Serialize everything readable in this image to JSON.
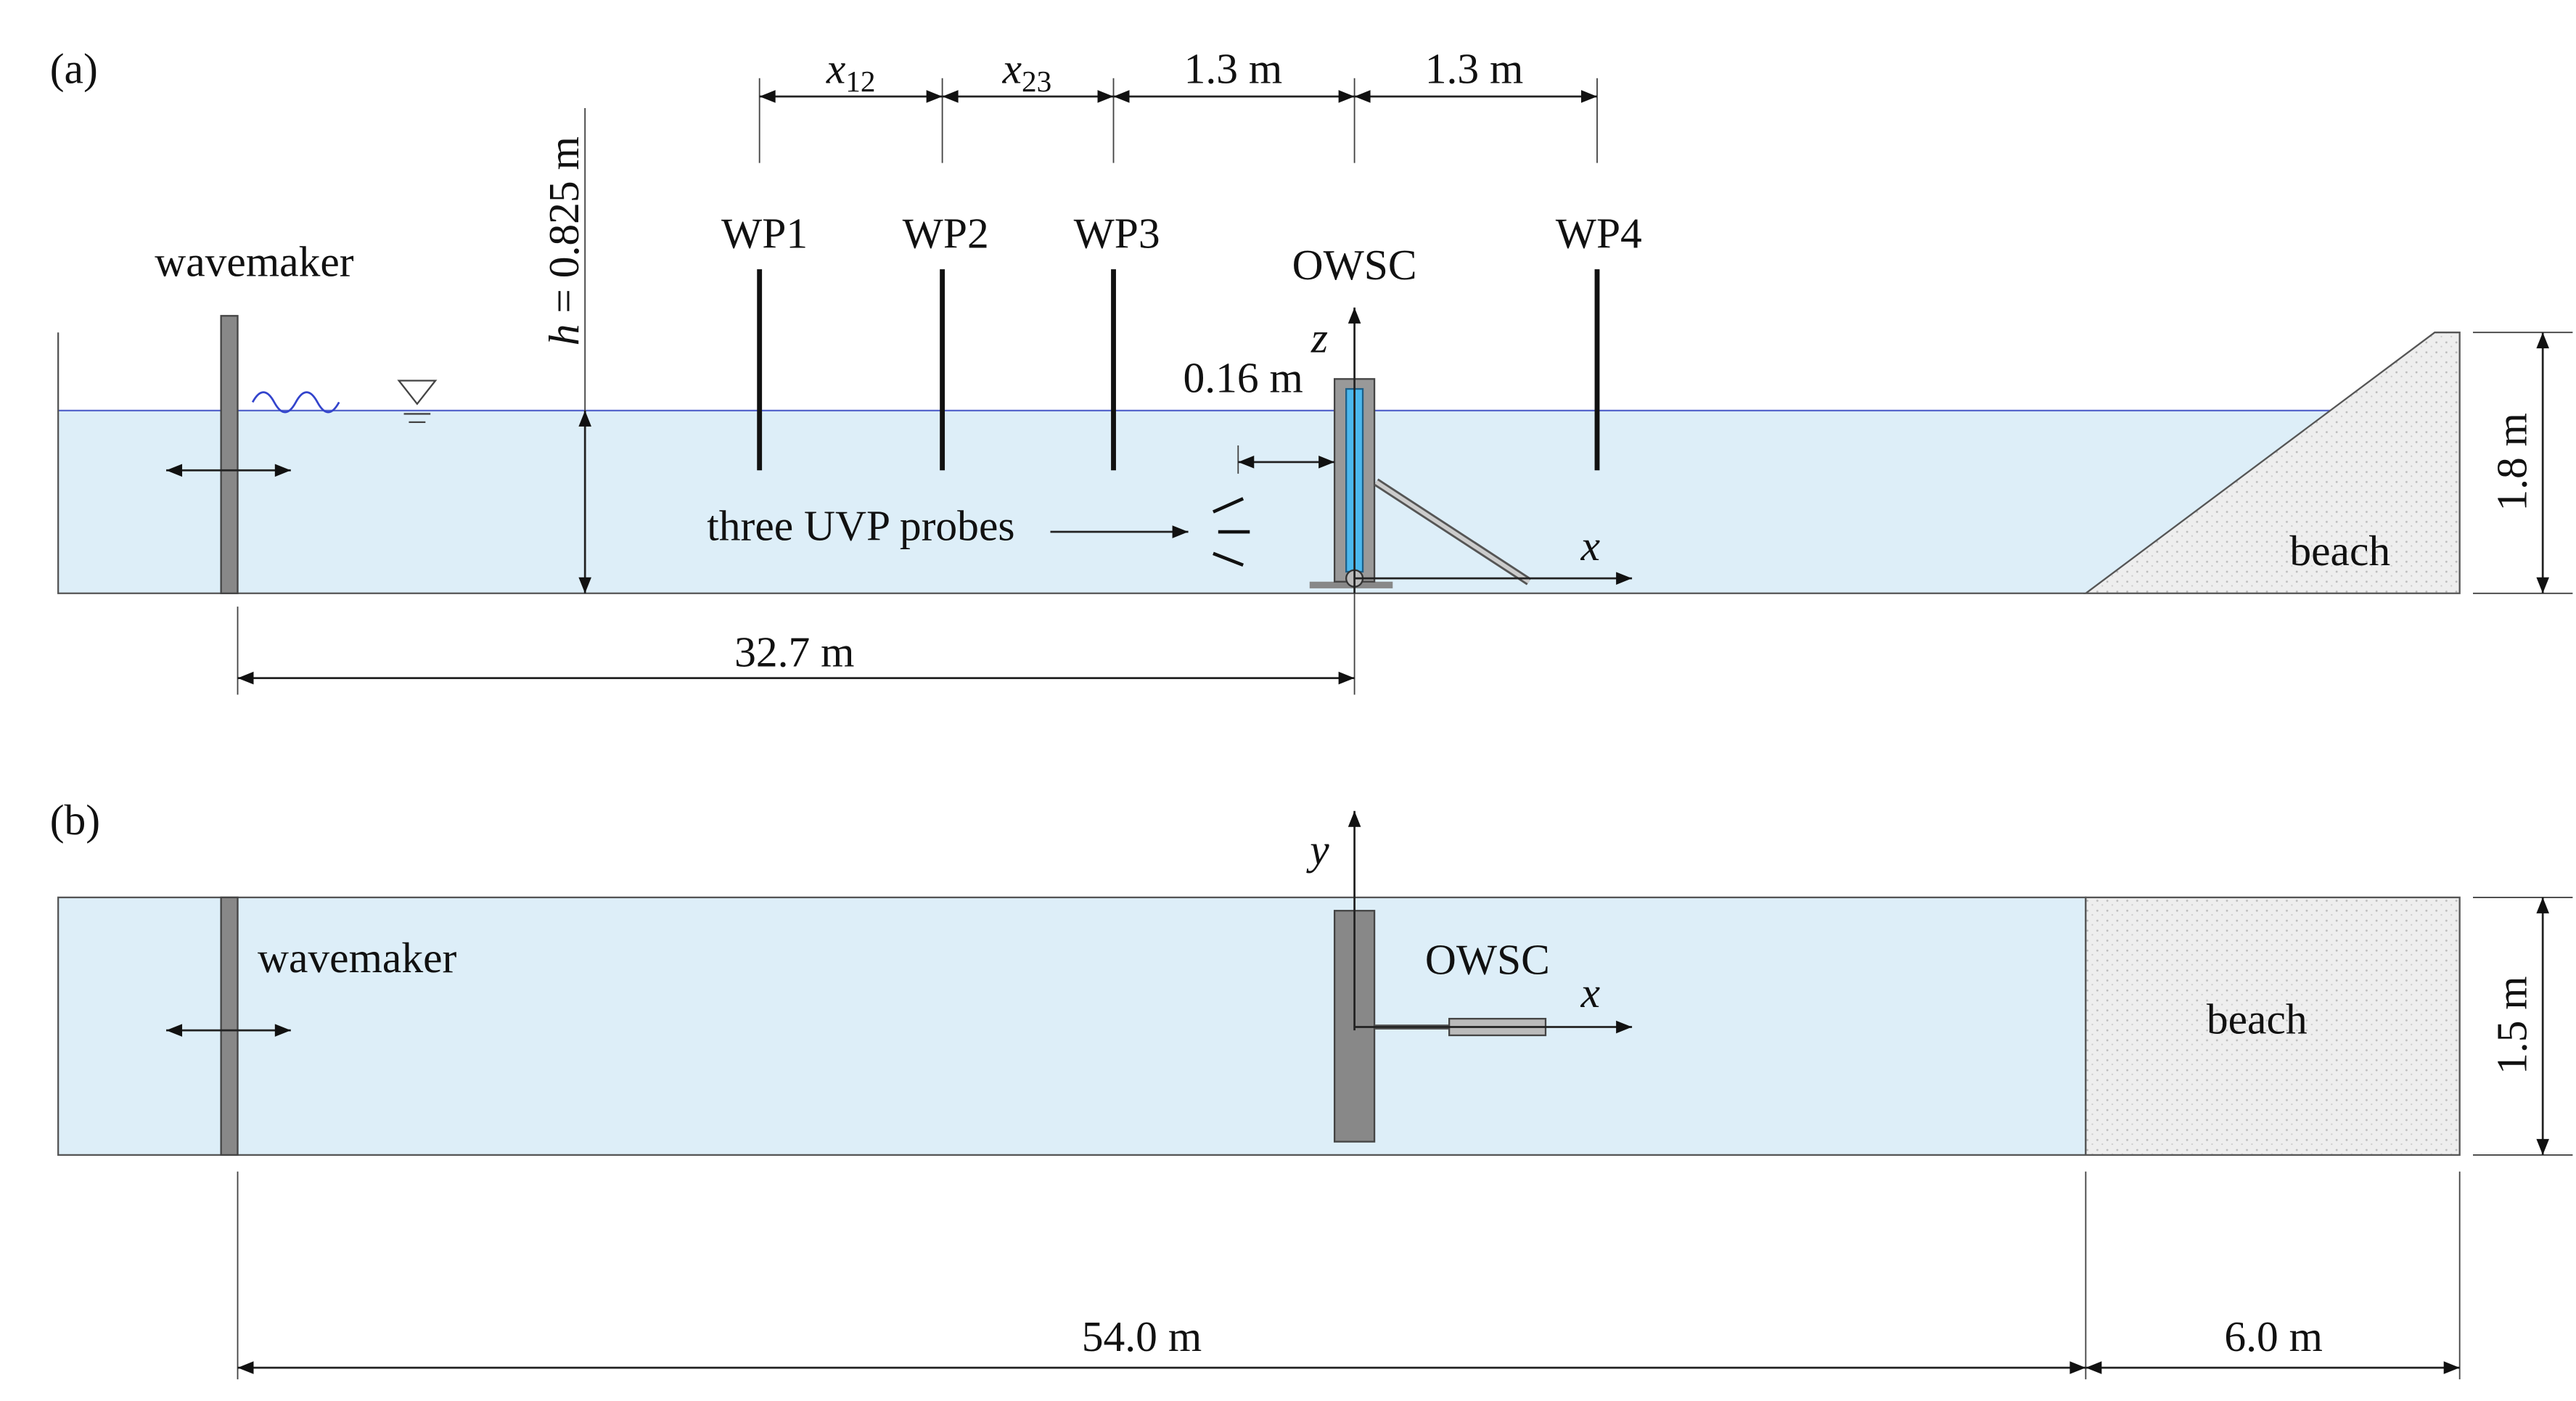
{
  "panel_a": {
    "label": "(a)",
    "wavemaker": "wavemaker",
    "depth": {
      "symbol": "h",
      "text": " = 0.825 m"
    },
    "probes": [
      "WP1",
      "WP2",
      "WP3",
      "WP4"
    ],
    "spacing": [
      {
        "symbol": "x",
        "sub": "12"
      },
      {
        "symbol": "x",
        "sub": "23"
      },
      "1.3 m",
      "1.3 m"
    ],
    "device": "OWSC",
    "axis_z": "z",
    "axis_x": "x",
    "offset": "0.16 m",
    "uvp": "three UVP probes",
    "beach": "beach",
    "height": "1.8 m",
    "distance": "32.7 m"
  },
  "panel_b": {
    "label": "(b)",
    "wavemaker": "wavemaker",
    "device": "OWSC",
    "axis_y": "y",
    "axis_x": "x",
    "beach": "beach",
    "width": "1.5 m",
    "flume_length": "54.0 m",
    "beach_length": "6.0 m"
  }
}
